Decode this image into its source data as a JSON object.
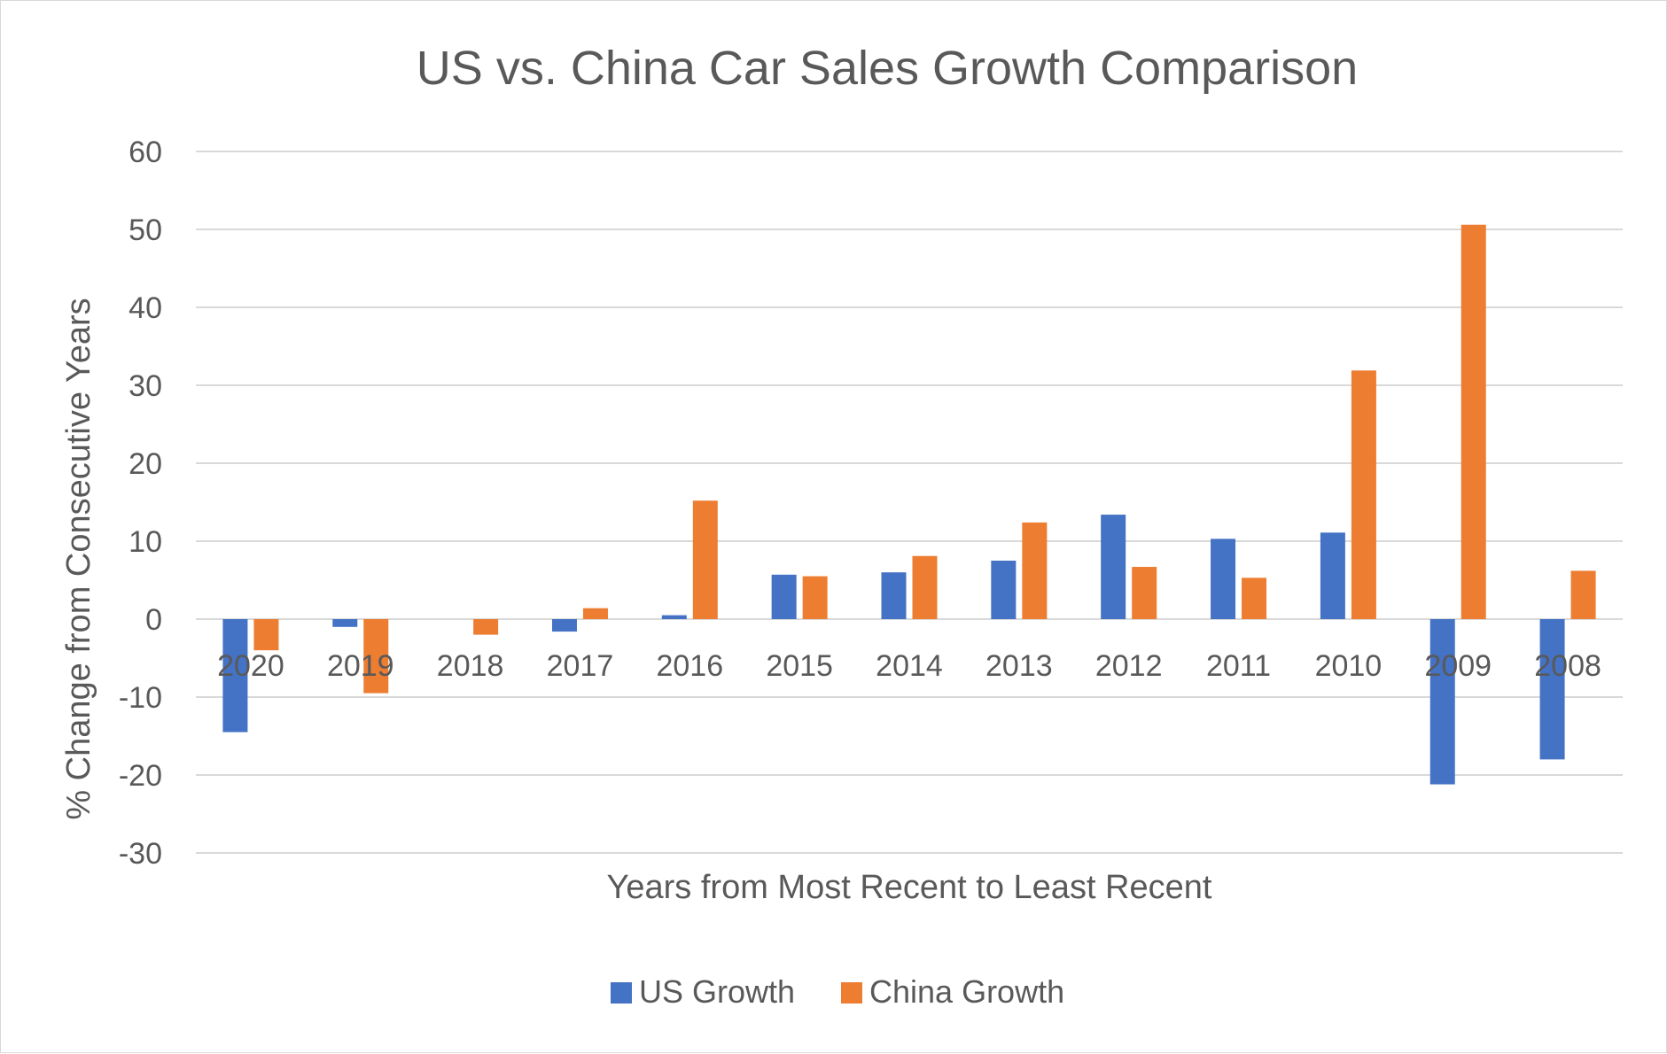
{
  "chart_data": {
    "type": "bar",
    "title": "US vs. China Car Sales Growth Comparison",
    "xlabel": "Years from Most Recent to Least Recent",
    "ylabel": "% Change from Consecutive Years",
    "ylim": [
      -30,
      60
    ],
    "yticks": [
      -30,
      -20,
      -10,
      0,
      10,
      20,
      30,
      40,
      50,
      60
    ],
    "ytick_labels": [
      "-30",
      "-20",
      "-10",
      "0",
      "10",
      "20",
      "30",
      "40",
      "50",
      "60"
    ],
    "grid": true,
    "legend_position": "bottom",
    "categories": [
      "2020",
      "2019",
      "2018",
      "2017",
      "2016",
      "2015",
      "2014",
      "2013",
      "2012",
      "2011",
      "2010",
      "2009",
      "2008"
    ],
    "series": [
      {
        "name": "US Growth",
        "color": "#4472c4",
        "values": [
          -14.5,
          -1.0,
          0.0,
          -1.6,
          0.5,
          5.7,
          6.0,
          7.5,
          13.4,
          10.3,
          11.1,
          -21.2,
          -18.0
        ]
      },
      {
        "name": "China Growth",
        "color": "#ed7d31",
        "values": [
          -4.0,
          -9.5,
          -2.0,
          1.4,
          15.2,
          5.5,
          8.1,
          12.4,
          6.7,
          5.3,
          31.9,
          50.6,
          6.2
        ]
      }
    ]
  }
}
